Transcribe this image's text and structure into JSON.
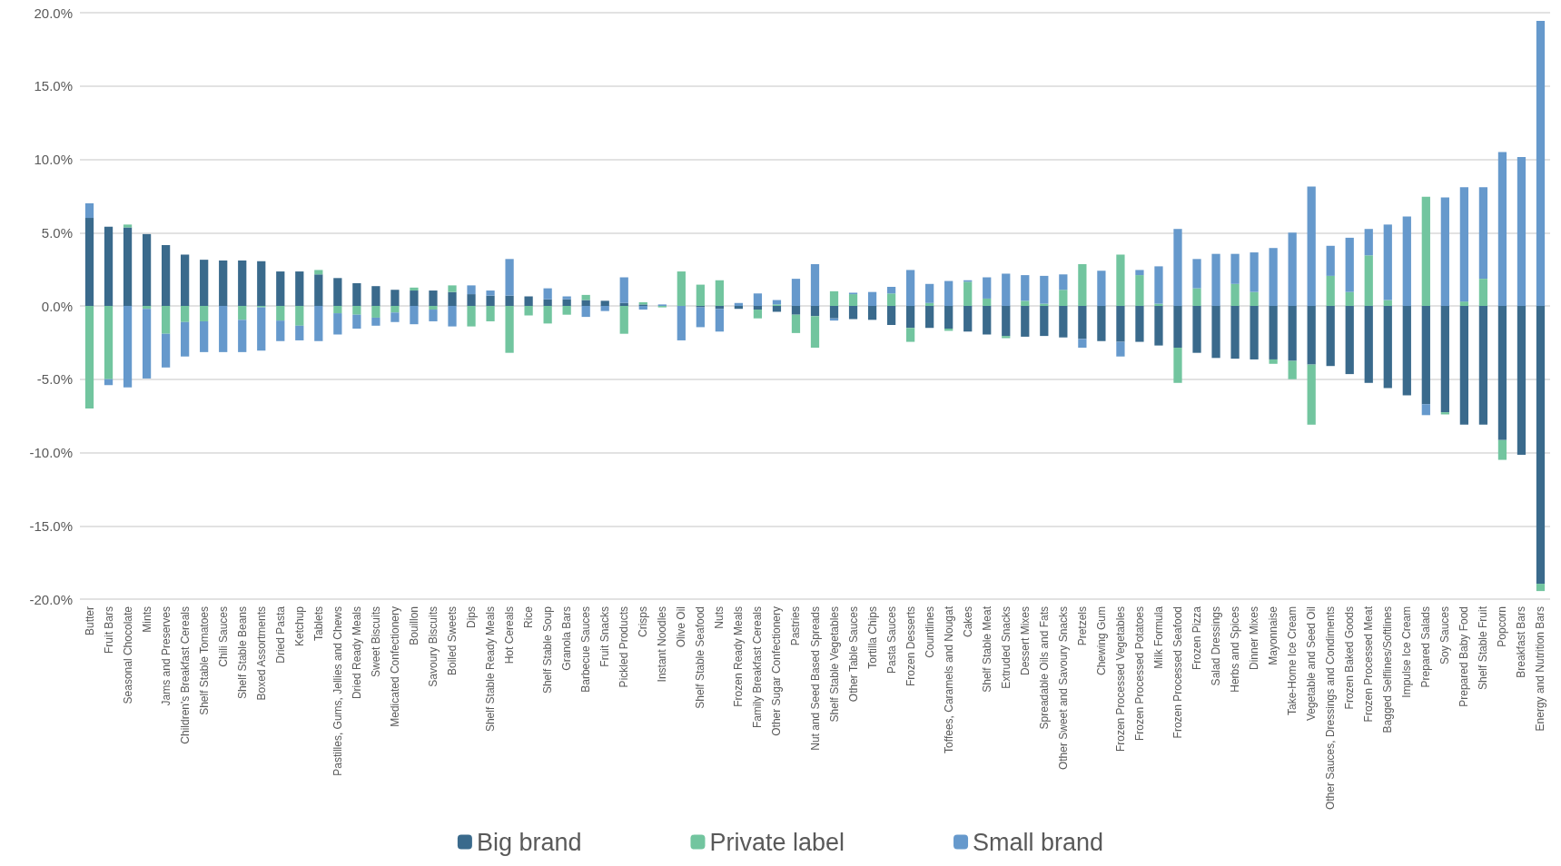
{
  "chart_data": {
    "type": "bar",
    "stacked": true,
    "grid": "y",
    "legend": "bottom",
    "categories": [
      "Butter",
      "Fruit Bars",
      "Seasonal Chocolate",
      "Mints",
      "Jams and Preserves",
      "Children's Breakfast Cereals",
      "Shelf Stable Tomatoes",
      "Chili Sauces",
      "Shelf Stable Beans",
      "Boxed Assortments",
      "Dried Pasta",
      "Ketchup",
      "Tablets",
      "Pastilles, Gums, Jellies and Chews",
      "Dried Ready Meals",
      "Sweet Biscuits",
      "Medicated Confectionery",
      "Bouillon",
      "Savoury Biscuits",
      "Boiled Sweets",
      "Dips",
      "Shelf Stable Ready Meals",
      "Hot Cereals",
      "Rice",
      "Shelf Stable Soup",
      "Granola Bars",
      "Barbecue Sauces",
      "Fruit Snacks",
      "Pickled Products",
      "Crisps",
      "Instant Noodles",
      "Olive Oil",
      "Shelf Stable Seafood",
      "Nuts",
      "Frozen Ready Meals",
      "Family Breakfast Cereals",
      "Other Sugar Confectionery",
      "Pastries",
      "Nut and Seed Based Spreads",
      "Shelf Stable Vegetables",
      "Other Table Sauces",
      "Tortilla Chips",
      "Pasta Sauces",
      "Frozen Desserts",
      "Countlines",
      "Toffees, Caramels and Nougat",
      "Cakes",
      "Shelf Stable Meat",
      "Extruded Snacks",
      "Dessert Mixes",
      "Spreadable Oils and Fats",
      "Other Sweet and Savoury Snacks",
      "Pretzels",
      "Chewing Gum",
      "Frozen Processed Vegetables",
      "Frozen Processed Potatoes",
      "Milk Formula",
      "Frozen Processed Seafood",
      "Frozen Pizza",
      "Salad Dressings",
      "Herbs and Spices",
      "Dinner Mixes",
      "Mayonnaise",
      "Take-Home Ice Cream",
      "Vegetable and Seed Oil",
      "Other Sauces, Dressings and Condiments",
      "Frozen Baked Goods",
      "Frozen Processed Meat",
      "Bagged Selflines/Softlines",
      "Impulse Ice Cream",
      "Prepared Salads",
      "Soy Sauces",
      "Prepared Baby Food",
      "Shelf Stable Fruit",
      "Popcorn",
      "Breakfast Bars",
      "Energy and Nutrition Bars"
    ],
    "ylim": [
      -20,
      20
    ],
    "yticks": [
      {
        "value": -20,
        "label": "-20.0%"
      },
      {
        "value": -15,
        "label": "-15.0%"
      },
      {
        "value": -10,
        "label": "-10.0%"
      },
      {
        "value": -5,
        "label": "-5.0%"
      },
      {
        "value": 0,
        "label": "0.0%"
      },
      {
        "value": 5,
        "label": "5.0%"
      },
      {
        "value": 10,
        "label": "10.0%"
      },
      {
        "value": 15,
        "label": "15.0%"
      },
      {
        "value": 20,
        "label": "20.0%"
      }
    ],
    "series": [
      {
        "name": "Big brand",
        "color": "#3a6a8c",
        "values": [
          6.0,
          5.4,
          5.35,
          4.9,
          4.15,
          3.5,
          3.15,
          3.1,
          3.1,
          3.05,
          2.35,
          2.35,
          2.15,
          1.9,
          1.55,
          1.35,
          1.1,
          1.05,
          1.05,
          0.95,
          0.8,
          0.7,
          0.7,
          0.65,
          0.45,
          0.45,
          0.4,
          0.35,
          0.2,
          0.1,
          0,
          0,
          -0.1,
          -0.2,
          -0.2,
          -0.25,
          -0.4,
          -0.6,
          -0.7,
          -0.85,
          -0.9,
          -0.95,
          -1.3,
          -1.5,
          -1.5,
          -1.55,
          -1.75,
          -1.95,
          -2.05,
          -2.1,
          -2.05,
          -2.15,
          -2.25,
          -2.4,
          -2.45,
          -2.45,
          -2.7,
          -2.85,
          -3.2,
          -3.55,
          -3.6,
          -3.65,
          -3.65,
          -3.75,
          -4.0,
          -4.1,
          -4.65,
          -5.25,
          -5.6,
          -6.1,
          -6.7,
          -7.25,
          -8.1,
          -8.1,
          -9.15,
          -10.15,
          -18.95
        ]
      },
      {
        "name": "Private label",
        "color": "#72c59f",
        "values": [
          -7.0,
          -5.0,
          0.2,
          -0.2,
          -1.9,
          -1.1,
          -1.05,
          0,
          -0.95,
          -0.1,
          -1.0,
          -1.35,
          0.3,
          -0.5,
          -0.6,
          -0.8,
          -0.45,
          0.2,
          -0.25,
          0.45,
          -1.4,
          -1.05,
          -3.2,
          -0.65,
          -1.2,
          -0.6,
          0.35,
          0,
          -1.9,
          0.15,
          -0.1,
          2.35,
          1.45,
          1.75,
          0,
          -0.6,
          0.1,
          -1.25,
          -2.15,
          1.0,
          0.8,
          0,
          0.85,
          -0.95,
          0.2,
          -0.15,
          1.65,
          0.5,
          -0.15,
          0.35,
          0.15,
          1.1,
          2.85,
          0,
          3.5,
          2.1,
          0.15,
          -2.4,
          1.2,
          0,
          1.5,
          0.95,
          -0.3,
          -1.25,
          -4.1,
          2.05,
          0.95,
          3.45,
          0.4,
          0,
          7.45,
          -0.15,
          0.3,
          1.85,
          -1.35,
          0,
          -0.5
        ]
      },
      {
        "name": "Small brand",
        "color": "#6699cc",
        "values": [
          1.0,
          -0.4,
          -5.55,
          -4.75,
          -2.3,
          -2.35,
          -2.1,
          -3.15,
          -2.2,
          -2.95,
          -1.4,
          -1.0,
          -2.4,
          -1.45,
          -0.95,
          -0.55,
          -0.65,
          -1.25,
          -0.8,
          -1.4,
          0.6,
          0.35,
          2.5,
          0,
          0.75,
          0.2,
          -0.75,
          -0.35,
          1.75,
          -0.25,
          0.1,
          -2.35,
          -1.35,
          -1.55,
          0.2,
          0.85,
          0.3,
          1.85,
          2.85,
          -0.15,
          0.1,
          0.95,
          0.45,
          2.45,
          1.3,
          1.7,
          0.1,
          1.45,
          2.2,
          1.75,
          1.9,
          1.05,
          -0.6,
          2.4,
          -1.0,
          0.35,
          2.55,
          5.25,
          2.0,
          3.55,
          2.05,
          2.7,
          3.95,
          5.0,
          8.15,
          2.05,
          3.7,
          1.8,
          5.15,
          6.1,
          -0.75,
          7.4,
          7.8,
          6.25,
          10.5,
          10.15,
          19.45
        ]
      }
    ]
  }
}
